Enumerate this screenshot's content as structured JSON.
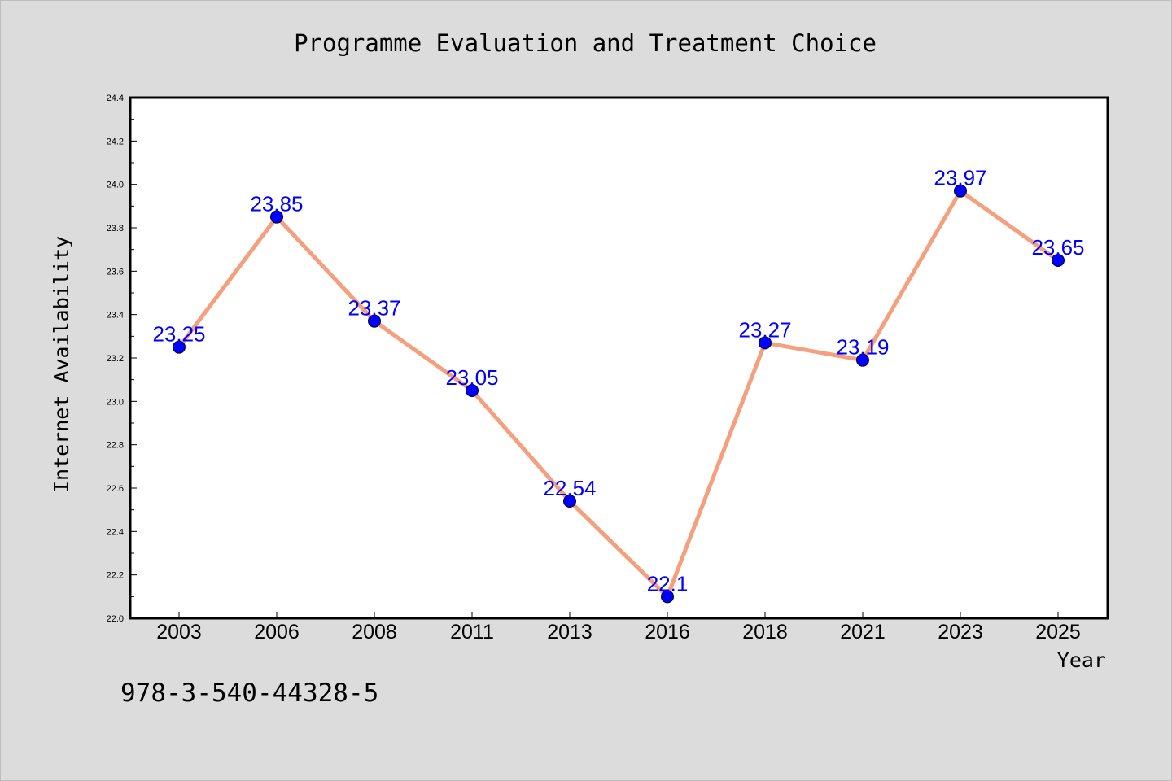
{
  "chart_data": {
    "type": "line",
    "title": "Programme Evaluation and Treatment Choice",
    "xlabel": "Year",
    "ylabel": "Internet Availability",
    "categories": [
      "2003",
      "2006",
      "2008",
      "2011",
      "2013",
      "2016",
      "2018",
      "2021",
      "2023",
      "2025"
    ],
    "series": [
      {
        "values": [
          23.25,
          23.85,
          23.37,
          23.05,
          22.54,
          22.1,
          23.27,
          23.19,
          23.97,
          23.65
        ]
      }
    ],
    "data_labels": [
      "23.25",
      "23.85",
      "23.37",
      "23.05",
      "22.54",
      "22.1",
      "23.27",
      "23.19",
      "23.97",
      "23.65"
    ],
    "yticks": [
      "22.0",
      "22.2",
      "22.4",
      "22.6",
      "22.8",
      "23.0",
      "23.2",
      "23.4",
      "23.6",
      "23.8",
      "24.0",
      "24.2",
      "24.4"
    ],
    "ylim": [
      22.0,
      24.4
    ],
    "grid": false,
    "colors": {
      "line": "#f4a07e",
      "marker": "#0000ff",
      "label": "#0000ff",
      "background": "#dcdcdc",
      "plot_background": "#ffffff"
    }
  },
  "footer": {
    "code": "978-3-540-44328-5"
  }
}
